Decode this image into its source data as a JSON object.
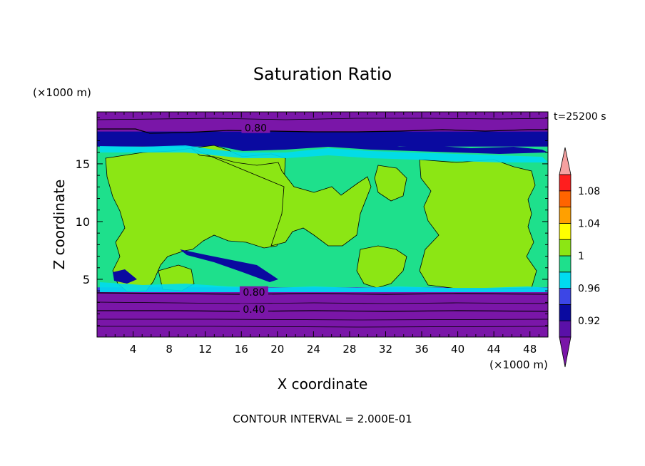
{
  "chart_data": {
    "type": "heatmap",
    "title": "Saturation Ratio",
    "xlabel": "X coordinate",
    "ylabel": "Z coordinate",
    "x_unit": "(×1000 m)",
    "y_unit": "(×1000 m)",
    "time_label": "t=25200 s",
    "footer": "CONTOUR INTERVAL = 2.000E-01",
    "xlim": [
      0,
      50
    ],
    "ylim": [
      0,
      19.5
    ],
    "x_ticks": [
      4,
      8,
      12,
      16,
      20,
      24,
      28,
      32,
      36,
      40,
      44,
      48
    ],
    "y_ticks": [
      5,
      10,
      15
    ],
    "contour_labels": [
      {
        "text": "0.80",
        "x": 17.6,
        "z": 18.1
      },
      {
        "text": "0.80",
        "x": 17.4,
        "z": 3.9
      },
      {
        "text": "0.40",
        "x": 17.4,
        "z": 2.4
      }
    ],
    "colorbar": {
      "bin_edges": [
        0.9,
        0.92,
        0.94,
        0.96,
        0.98,
        1.0,
        1.02,
        1.04,
        1.06,
        1.08,
        1.1
      ],
      "tick_labels": [
        "0.92",
        "0.96",
        "1",
        "1.04",
        "1.08"
      ],
      "bin_colors": [
        "#5a10a8",
        "#0a0aa0",
        "#3c46e6",
        "#00dcf0",
        "#1ee08c",
        "#8ce614",
        "#ffff00",
        "#ffa000",
        "#ff6400",
        "#ff1e1e"
      ],
      "under_color": "#7a16a8",
      "over_color": "#f5a0a0"
    },
    "layers": [
      {
        "z_range": [
          0,
          3.9
        ],
        "value": "< 0.9",
        "color": "#7a16a8"
      },
      {
        "z_range": [
          3.9,
          4.3
        ],
        "value": "0.94-0.98",
        "color": "#3c46e6"
      },
      {
        "z_range": [
          4.3,
          16.5
        ],
        "value": "0.98-1.02",
        "color": "#1ee08c"
      },
      {
        "z_range": [
          16.5,
          17.8
        ],
        "value": "0.92-0.96",
        "color": "#0a0aa0"
      },
      {
        "z_range": [
          17.8,
          19.5
        ],
        "value": "< 0.9",
        "color": "#7a16a8"
      }
    ]
  }
}
